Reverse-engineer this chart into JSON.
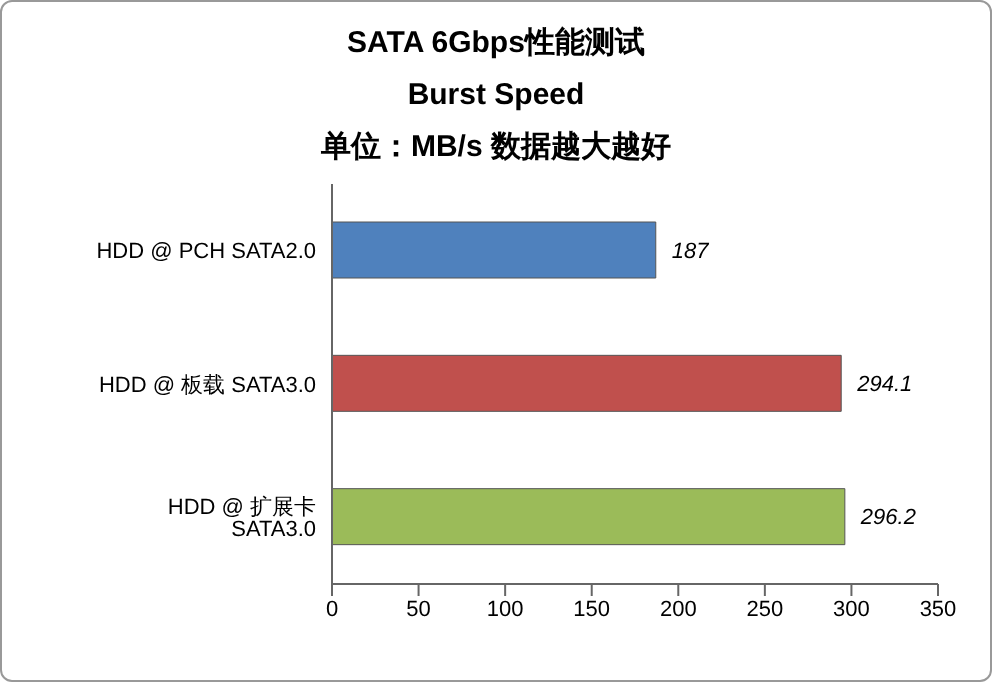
{
  "chart_data": {
    "type": "bar",
    "orientation": "horizontal",
    "title": "SATA 6Gbps性能测试",
    "subtitle": "Burst Speed",
    "annotations": [
      "单位：MB/s  数据越大越好"
    ],
    "categories": [
      "HDD @ PCH SATA2.0",
      "HDD @ 板载 SATA3.0",
      "HDD @ 扩展卡 SATA3.0"
    ],
    "values": [
      187,
      294.1,
      296.2
    ],
    "colors": [
      "#4f81bd",
      "#c0504d",
      "#9bbb59"
    ],
    "xlim": [
      0,
      350
    ],
    "xticks": [
      0,
      50,
      100,
      150,
      200,
      250,
      300,
      350
    ],
    "data_labels": true
  }
}
